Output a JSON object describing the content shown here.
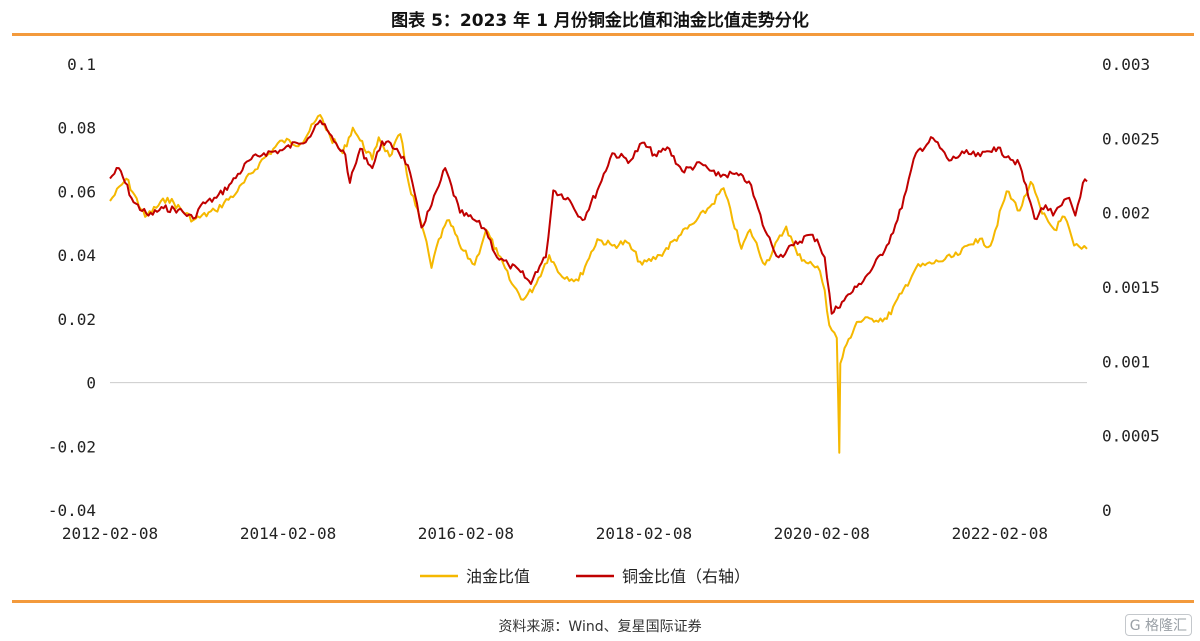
{
  "header": {
    "title": "图表 5：2023 年 1 月份铜金比值和油金比值走势分化"
  },
  "footer": {
    "source": "资料来源：Wind、复星国际证券",
    "watermark": "G 格隆汇"
  },
  "colors": {
    "oil_gold": "#f5b800",
    "copper_gold": "#c00000",
    "accent": "#f39a3c",
    "zero_line": "#cccccc"
  },
  "chart_data": {
    "type": "line",
    "title": "",
    "x_ticks": [
      "2012-02-08",
      "2014-02-08",
      "2016-02-08",
      "2018-02-08",
      "2020-02-08",
      "2022-02-08"
    ],
    "xlim": [
      "2012-02-08",
      "2023-02-01"
    ],
    "y_left": {
      "ylim": [
        -0.04,
        0.1
      ],
      "ticks": [
        "-0.04",
        "-0.02",
        "0",
        "0.02",
        "0.04",
        "0.06",
        "0.08",
        "0.1"
      ]
    },
    "y_right": {
      "ylim": [
        0,
        0.003
      ],
      "ticks": [
        "0",
        "0.0005",
        "0.001",
        "0.0015",
        "0.002",
        "0.0025",
        "0.003"
      ]
    },
    "legend_position": "bottom",
    "series": [
      {
        "name": "油金比值",
        "axis": "left",
        "color": "#f5b800",
        "points": [
          [
            "2012-02-08",
            0.057
          ],
          [
            "2012-04-15",
            0.064
          ],
          [
            "2012-07-01",
            0.052
          ],
          [
            "2012-10-01",
            0.058
          ],
          [
            "2013-01-15",
            0.051
          ],
          [
            "2013-04-15",
            0.054
          ],
          [
            "2013-07-15",
            0.06
          ],
          [
            "2013-10-15",
            0.069
          ],
          [
            "2014-01-15",
            0.076
          ],
          [
            "2014-04-01",
            0.075
          ],
          [
            "2014-06-20",
            0.084
          ],
          [
            "2014-08-01",
            0.077
          ],
          [
            "2014-09-20",
            0.072
          ],
          [
            "2014-11-01",
            0.08
          ],
          [
            "2014-12-01",
            0.076
          ],
          [
            "2015-01-20",
            0.07
          ],
          [
            "2015-02-15",
            0.077
          ],
          [
            "2015-04-01",
            0.071
          ],
          [
            "2015-05-15",
            0.078
          ],
          [
            "2015-06-20",
            0.062
          ],
          [
            "2015-08-20",
            0.047
          ],
          [
            "2015-09-20",
            0.036
          ],
          [
            "2015-10-20",
            0.045
          ],
          [
            "2015-12-01",
            0.051
          ],
          [
            "2016-01-20",
            0.042
          ],
          [
            "2016-03-15",
            0.037
          ],
          [
            "2016-05-01",
            0.048
          ],
          [
            "2016-06-20",
            0.04
          ],
          [
            "2016-08-15",
            0.031
          ],
          [
            "2016-10-01",
            0.026
          ],
          [
            "2016-11-15",
            0.03
          ],
          [
            "2017-01-15",
            0.04
          ],
          [
            "2017-03-01",
            0.034
          ],
          [
            "2017-05-15",
            0.032
          ],
          [
            "2017-06-20",
            0.038
          ],
          [
            "2017-08-01",
            0.045
          ],
          [
            "2017-10-01",
            0.043
          ],
          [
            "2017-12-01",
            0.044
          ],
          [
            "2018-02-01",
            0.037
          ],
          [
            "2018-04-15",
            0.04
          ],
          [
            "2018-07-01",
            0.046
          ],
          [
            "2018-09-01",
            0.05
          ],
          [
            "2018-11-15",
            0.056
          ],
          [
            "2019-01-01",
            0.061
          ],
          [
            "2019-03-15",
            0.042
          ],
          [
            "2019-04-20",
            0.048
          ],
          [
            "2019-06-20",
            0.037
          ],
          [
            "2019-09-15",
            0.049
          ],
          [
            "2019-11-01",
            0.04
          ],
          [
            "2020-01-01",
            0.037
          ],
          [
            "2020-02-01",
            0.035
          ],
          [
            "2020-02-20",
            0.029
          ],
          [
            "2020-03-10",
            0.018
          ],
          [
            "2020-04-10",
            0.014
          ],
          [
            "2020-04-20",
            -0.022
          ],
          [
            "2020-04-24",
            0.006
          ],
          [
            "2020-05-20",
            0.012
          ],
          [
            "2020-07-01",
            0.019
          ],
          [
            "2020-09-01",
            0.02
          ],
          [
            "2020-11-01",
            0.02
          ],
          [
            "2021-01-01",
            0.028
          ],
          [
            "2021-03-01",
            0.036
          ],
          [
            "2021-06-01",
            0.038
          ],
          [
            "2021-08-20",
            0.04
          ],
          [
            "2021-11-01",
            0.045
          ],
          [
            "2022-01-01",
            0.043
          ],
          [
            "2022-03-08",
            0.06
          ],
          [
            "2022-05-01",
            0.054
          ],
          [
            "2022-06-15",
            0.063
          ],
          [
            "2022-08-01",
            0.053
          ],
          [
            "2022-09-20",
            0.048
          ],
          [
            "2022-11-01",
            0.052
          ],
          [
            "2022-12-10",
            0.043
          ],
          [
            "2023-01-10",
            0.042
          ],
          [
            "2023-02-01",
            0.042
          ]
        ]
      },
      {
        "name": "铜金比值（右轴）",
        "axis": "right",
        "color": "#c00000",
        "points": [
          [
            "2012-02-08",
            0.00223
          ],
          [
            "2012-03-15",
            0.0023
          ],
          [
            "2012-05-15",
            0.00207
          ],
          [
            "2012-07-15",
            0.00198
          ],
          [
            "2012-09-15",
            0.00203
          ],
          [
            "2012-11-15",
            0.00202
          ],
          [
            "2013-01-15",
            0.00196
          ],
          [
            "2013-02-15",
            0.00205
          ],
          [
            "2013-04-20",
            0.0021
          ],
          [
            "2013-06-20",
            0.0022
          ],
          [
            "2013-09-01",
            0.00235
          ],
          [
            "2013-11-01",
            0.0024
          ],
          [
            "2014-01-15",
            0.00242
          ],
          [
            "2014-03-15",
            0.00247
          ],
          [
            "2014-05-01",
            0.0025
          ],
          [
            "2014-06-01",
            0.00259
          ],
          [
            "2014-06-20",
            0.00262
          ],
          [
            "2014-08-15",
            0.00248
          ],
          [
            "2014-10-01",
            0.00239
          ],
          [
            "2014-10-20",
            0.0022
          ],
          [
            "2014-12-01",
            0.00243
          ],
          [
            "2015-01-20",
            0.0023
          ],
          [
            "2015-03-01",
            0.00248
          ],
          [
            "2015-05-01",
            0.00243
          ],
          [
            "2015-06-15",
            0.00232
          ],
          [
            "2015-08-10",
            0.0019
          ],
          [
            "2015-09-20",
            0.00205
          ],
          [
            "2015-10-20",
            0.00218
          ],
          [
            "2015-11-15",
            0.0023
          ],
          [
            "2016-01-15",
            0.002
          ],
          [
            "2016-03-15",
            0.00195
          ],
          [
            "2016-05-01",
            0.00188
          ],
          [
            "2016-06-15",
            0.0017
          ],
          [
            "2016-08-01",
            0.00165
          ],
          [
            "2016-09-20",
            0.0016
          ],
          [
            "2016-11-01",
            0.00152
          ],
          [
            "2016-11-20",
            0.0016
          ],
          [
            "2017-01-01",
            0.0017
          ],
          [
            "2017-02-01",
            0.00215
          ],
          [
            "2017-04-01",
            0.0021
          ],
          [
            "2017-06-01",
            0.00195
          ],
          [
            "2017-08-01",
            0.00215
          ],
          [
            "2017-10-01",
            0.0024
          ],
          [
            "2017-12-15",
            0.00235
          ],
          [
            "2018-02-01",
            0.00247
          ],
          [
            "2018-04-01",
            0.00238
          ],
          [
            "2018-05-15",
            0.00244
          ],
          [
            "2018-07-15",
            0.00228
          ],
          [
            "2018-10-01",
            0.00233
          ],
          [
            "2018-12-01",
            0.00225
          ],
          [
            "2019-02-15",
            0.00226
          ],
          [
            "2019-04-15",
            0.00221
          ],
          [
            "2019-06-20",
            0.00188
          ],
          [
            "2019-08-15",
            0.0017
          ],
          [
            "2019-10-15",
            0.00178
          ],
          [
            "2019-12-15",
            0.00185
          ],
          [
            "2020-01-20",
            0.00182
          ],
          [
            "2020-02-20",
            0.0017
          ],
          [
            "2020-03-20",
            0.00132
          ],
          [
            "2020-05-01",
            0.0014
          ],
          [
            "2020-07-01",
            0.0015
          ],
          [
            "2020-09-01",
            0.00162
          ],
          [
            "2020-11-01",
            0.00178
          ],
          [
            "2020-12-15",
            0.00195
          ],
          [
            "2021-01-20",
            0.00215
          ],
          [
            "2021-03-01",
            0.0024
          ],
          [
            "2021-05-10",
            0.0025
          ],
          [
            "2021-07-15",
            0.00235
          ],
          [
            "2021-09-15",
            0.0024
          ],
          [
            "2021-11-20",
            0.00238
          ],
          [
            "2022-01-15",
            0.00244
          ],
          [
            "2022-03-15",
            0.00238
          ],
          [
            "2022-05-01",
            0.00232
          ],
          [
            "2022-07-01",
            0.00196
          ],
          [
            "2022-08-15",
            0.00205
          ],
          [
            "2022-09-15",
            0.00198
          ],
          [
            "2022-10-20",
            0.00205
          ],
          [
            "2022-11-20",
            0.0021
          ],
          [
            "2022-12-15",
            0.00198
          ],
          [
            "2023-01-15",
            0.0022
          ],
          [
            "2023-02-01",
            0.00221
          ]
        ]
      }
    ]
  }
}
